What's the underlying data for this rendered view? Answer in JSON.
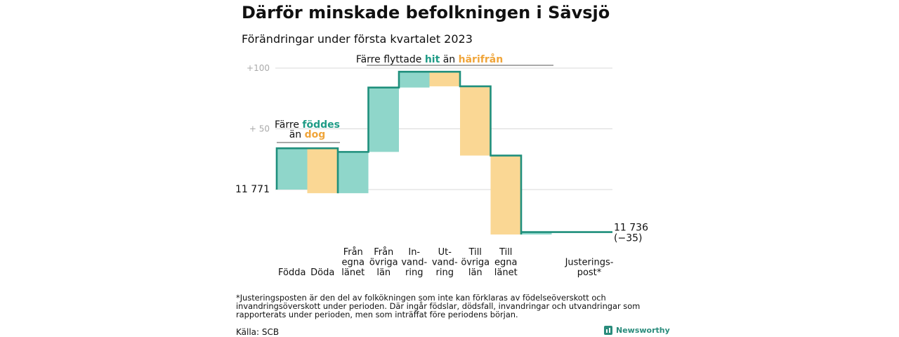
{
  "title": "Därför minskade befolkningen i Sävsjö",
  "subtitle": "Förändringar under första kvartalet 2023",
  "colors": {
    "teal": "#8fd6ca",
    "teal_line": "#1f8f7c",
    "teal_text": "#1f9b86",
    "orange": "#fad794",
    "orange_text": "#f0a53a",
    "grid": "#d9d9d9",
    "tick": "#aaaaaa"
  },
  "chart_data": {
    "type": "waterfall",
    "y_ticks": [
      {
        "value": 100,
        "label": "+100"
      },
      {
        "value": 50,
        "label": "+ 50"
      }
    ],
    "start": {
      "value": 0,
      "label": "11 771"
    },
    "end": {
      "value": -35,
      "label_line1": "11 736",
      "label_line2": "(−35)"
    },
    "steps": [
      {
        "label_lines": [
          "Födda"
        ],
        "delta": 34,
        "kind": "in"
      },
      {
        "label_lines": [
          "Döda"
        ],
        "delta": -37,
        "kind": "out"
      },
      {
        "label_lines": [
          "Från",
          "egna",
          "länet"
        ],
        "delta": 34,
        "kind": "in"
      },
      {
        "label_lines": [
          "Från",
          "övriga",
          "län"
        ],
        "delta": 53,
        "kind": "in"
      },
      {
        "label_lines": [
          "In-",
          "vand-",
          "ring"
        ],
        "delta": 13,
        "kind": "in"
      },
      {
        "label_lines": [
          "Ut-",
          "vand-",
          "ring"
        ],
        "delta": -12,
        "kind": "out"
      },
      {
        "label_lines": [
          "Till",
          "övriga",
          "län"
        ],
        "delta": -57,
        "kind": "out"
      },
      {
        "label_lines": [
          "Till",
          "egna",
          "länet"
        ],
        "delta": -65,
        "kind": "out"
      },
      {
        "label_lines": [
          "Justerings-",
          "post*"
        ],
        "delta": 2,
        "kind": "in"
      }
    ],
    "annotations": {
      "births": {
        "line1": "Färre",
        "word1": "föddes",
        "line2": "än",
        "word2": "dog"
      },
      "migration": {
        "prefix": "Färre flyttade",
        "word1": "hit",
        "middle": "än",
        "word2": "härifrån"
      }
    }
  },
  "footnote": "*Justeringsposten är den del av folkökningen som inte kan förklaras av födelseöverskott och invandringsöverskott under perioden. Där ingår födslar, dödsfall, invandringar och utvandringar som rapporterats under perioden, men som inträffat före periodens början.",
  "source": "Källa: SCB",
  "brand": "Newsworthy"
}
